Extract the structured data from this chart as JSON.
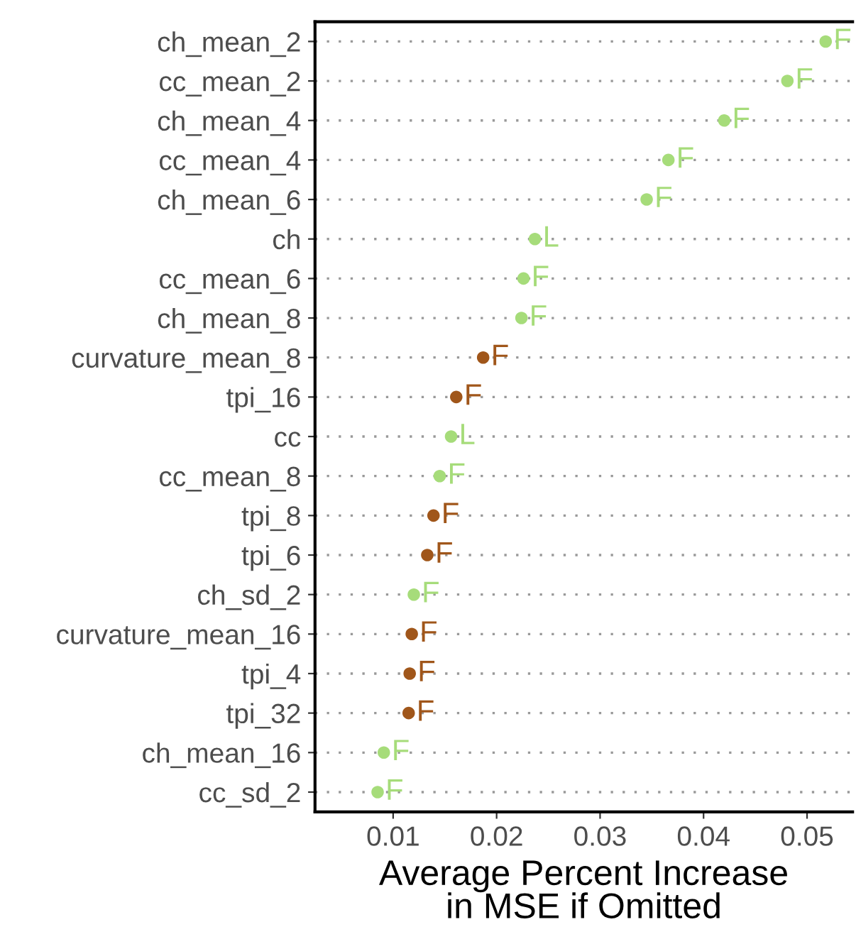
{
  "chart_data": {
    "type": "scatter",
    "orientation": "horizontal",
    "xlabel": "Average Percent Increase\nin MSE if Omitted",
    "categories": [
      "ch_mean_2",
      "cc_mean_2",
      "ch_mean_4",
      "cc_mean_4",
      "ch_mean_6",
      "ch",
      "cc_mean_6",
      "ch_mean_8",
      "curvature_mean_8",
      "tpi_16",
      "cc",
      "cc_mean_8",
      "tpi_8",
      "tpi_6",
      "ch_sd_2",
      "curvature_mean_16",
      "tpi_4",
      "tpi_32",
      "ch_mean_16",
      "cc_sd_2"
    ],
    "values": [
      0.0518,
      0.0481,
      0.042,
      0.0366,
      0.0345,
      0.0237,
      0.0226,
      0.0224,
      0.0187,
      0.0161,
      0.0156,
      0.0145,
      0.0139,
      0.0133,
      0.012,
      0.0118,
      0.0116,
      0.0115,
      0.0091,
      0.0085
    ],
    "value_labels": [
      "F",
      "F",
      "F",
      "F",
      "F",
      "L",
      "F",
      "F",
      "F",
      "F",
      "L",
      "F",
      "F",
      "F",
      "F",
      "F",
      "F",
      "F",
      "F",
      "F"
    ],
    "colors": [
      "#a6dc7a",
      "#a6dc7a",
      "#a6dc7a",
      "#a6dc7a",
      "#a6dc7a",
      "#a6dc7a",
      "#a6dc7a",
      "#a6dc7a",
      "#a0561a",
      "#a0561a",
      "#a6dc7a",
      "#a6dc7a",
      "#a0561a",
      "#a0561a",
      "#a6dc7a",
      "#a0561a",
      "#a0561a",
      "#a0561a",
      "#a6dc7a",
      "#a6dc7a"
    ],
    "xlim": [
      0.00245,
      0.0544
    ],
    "xticks": [
      0.01,
      0.02,
      0.03,
      0.04,
      0.05
    ],
    "grid": "y",
    "marker": "circle",
    "legend": false
  }
}
